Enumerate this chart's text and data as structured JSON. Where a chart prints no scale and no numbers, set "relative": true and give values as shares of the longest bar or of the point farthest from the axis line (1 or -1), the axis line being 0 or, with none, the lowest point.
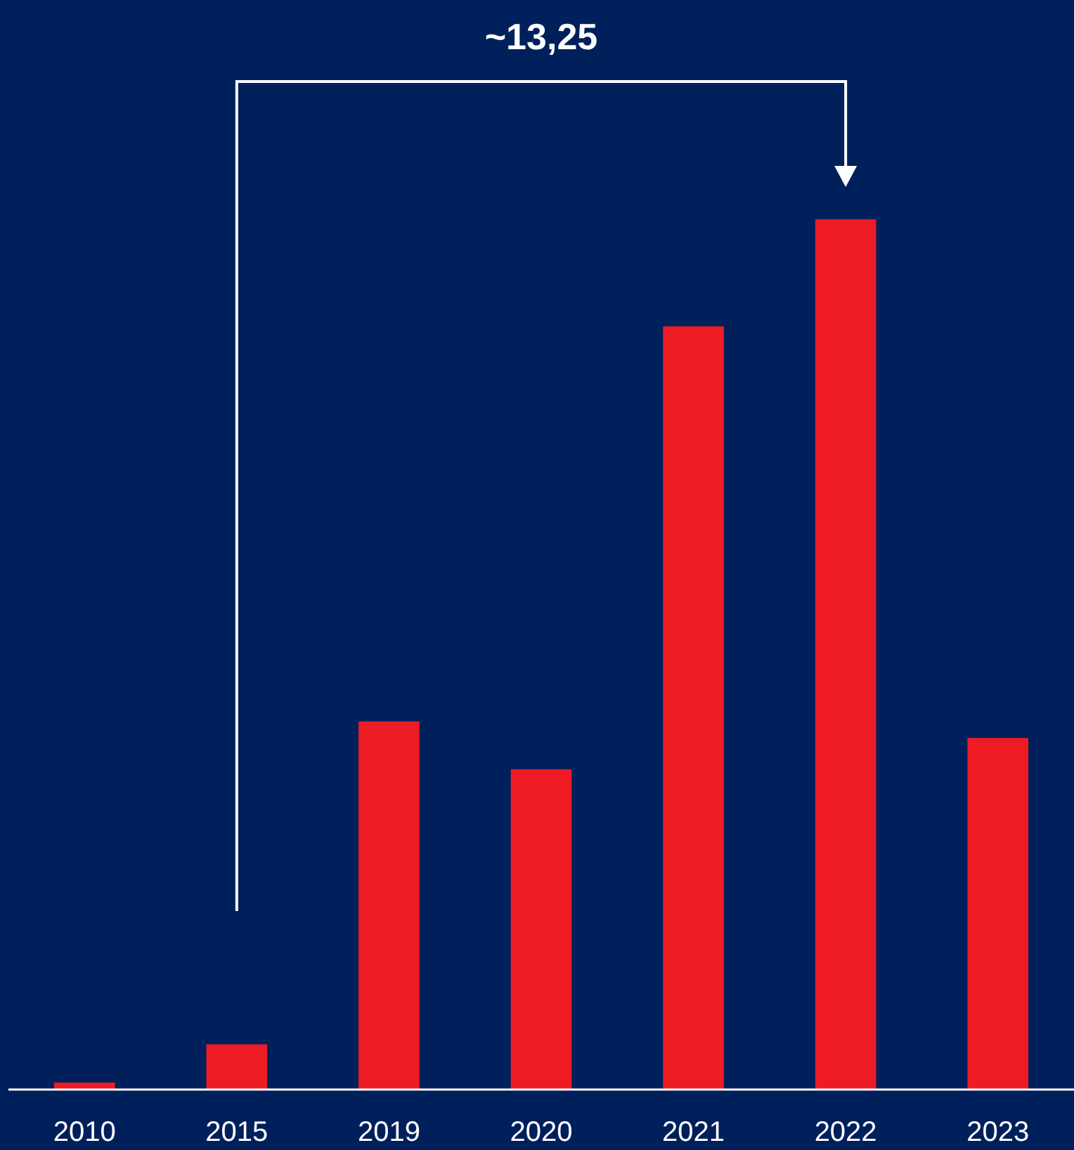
{
  "chart_data": {
    "type": "bar",
    "relative": true,
    "categories": [
      "2010",
      "2015",
      "2019",
      "2020",
      "2021",
      "2022",
      "2023"
    ],
    "values": [
      0.008,
      0.052,
      0.423,
      0.368,
      0.877,
      1,
      0.404
    ],
    "color": "#ed1c24",
    "annotations": [
      "~13,25"
    ]
  }
}
